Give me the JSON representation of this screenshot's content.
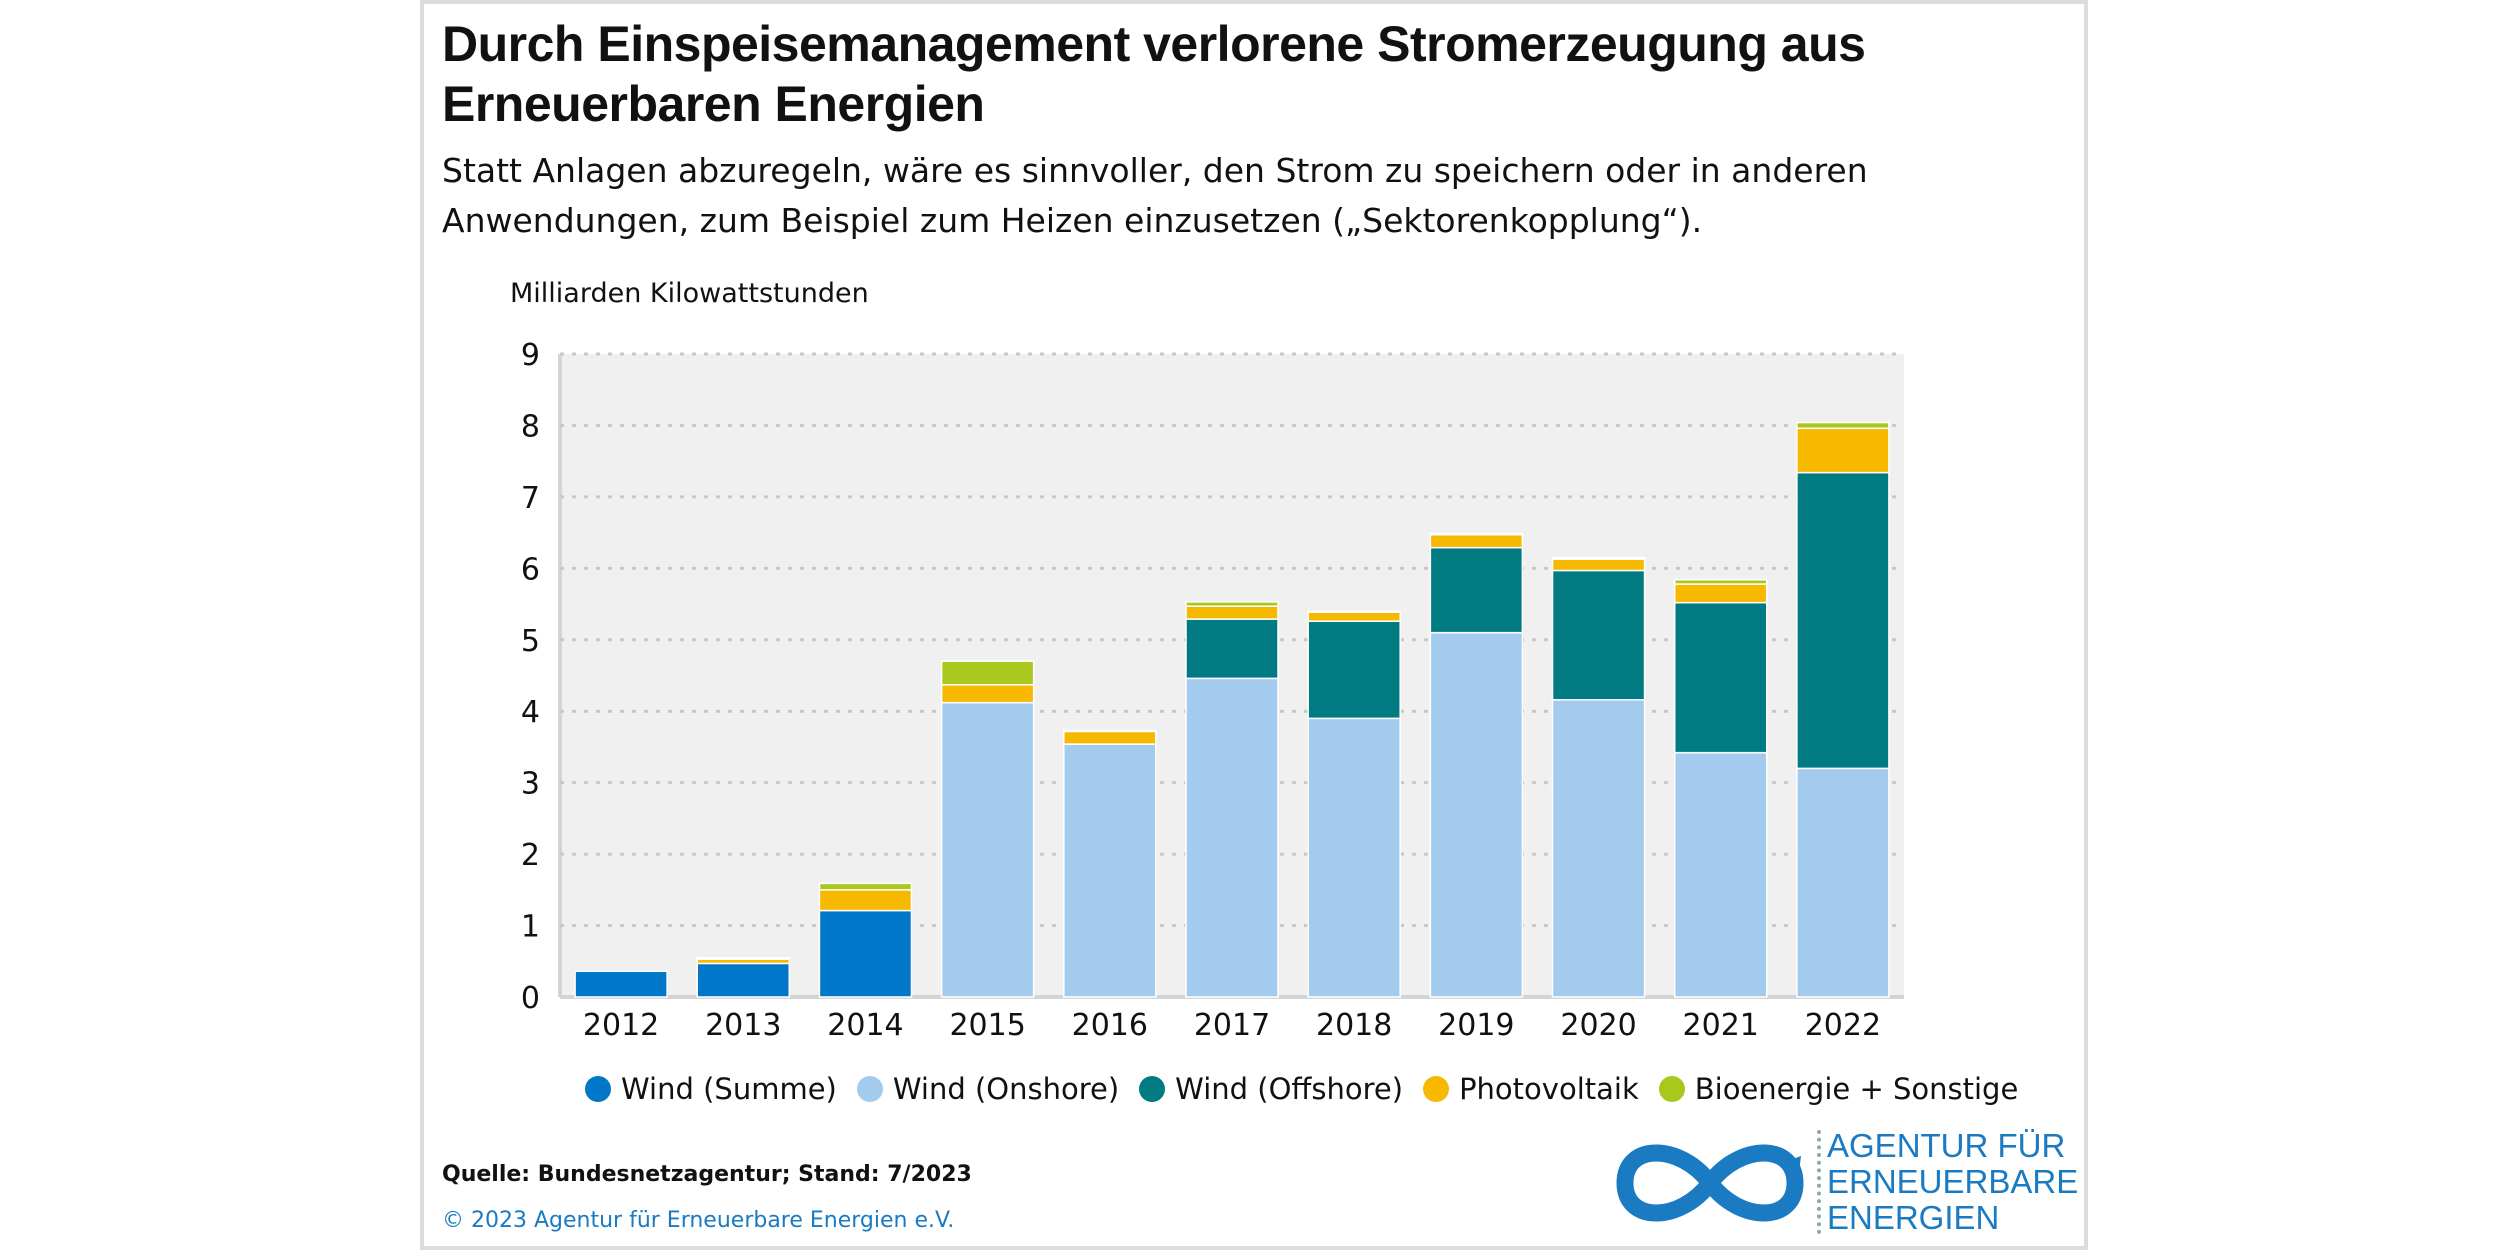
{
  "title": "Durch Einspeisemanagement verlorene Stromerzeugung aus Erneuerbaren Energien",
  "subtitle": "Statt Anlagen abzuregeln, wäre es sinnvoller, den Strom zu speichern oder in anderen Anwendungen, zum Beispiel zum Heizen einzusetzen („Sektorenkopplung“).",
  "source": "Quelle: Bundesnetzagentur; Stand: 7/2023",
  "copyright": "© 2023 Agentur für Erneuerbare Energien e.V.",
  "logo": {
    "lines": [
      "AGENTUR FÜR",
      "ERNEUERBARE",
      "ENERGIEN"
    ],
    "color": "#1a7ac2"
  },
  "chart_data": {
    "type": "bar",
    "stacked": true,
    "title": "Durch Einspeisemanagement verlorene Stromerzeugung aus Erneuerbaren Energien",
    "xlabel": "",
    "ylabel": "Milliarden Kilowattstunden",
    "ylim": [
      0,
      9
    ],
    "yticks": [
      "0",
      "1",
      "2",
      "3",
      "4",
      "5",
      "6",
      "7",
      "8",
      "9"
    ],
    "grid": true,
    "legend_position": "bottom",
    "categories": [
      "2012",
      "2013",
      "2014",
      "2015",
      "2016",
      "2017",
      "2018",
      "2019",
      "2020",
      "2021",
      "2022"
    ],
    "series": [
      {
        "name": "Wind (Summe)",
        "color": "#0077c8",
        "values": [
          0.36,
          0.47,
          1.21,
          0,
          0,
          0,
          0,
          0,
          0,
          0,
          0
        ]
      },
      {
        "name": "Wind (Onshore)",
        "color": "#a2cbed",
        "values": [
          0,
          0,
          0,
          4.12,
          3.54,
          4.46,
          3.9,
          5.1,
          4.16,
          3.42,
          3.2
        ]
      },
      {
        "name": "Wind (Offshore)",
        "color": "#007b82",
        "values": [
          0,
          0,
          0,
          0,
          0,
          0.83,
          1.36,
          1.19,
          1.81,
          2.1,
          4.14
        ]
      },
      {
        "name": "Photovoltaik",
        "color": "#f7b800",
        "values": [
          0,
          0.06,
          0.29,
          0.25,
          0.18,
          0.18,
          0.13,
          0.18,
          0.16,
          0.26,
          0.62
        ]
      },
      {
        "name": "Bioenergie + Sonstige",
        "color": "#a8c81e",
        "values": [
          0,
          0.02,
          0.09,
          0.33,
          0.01,
          0.06,
          0.01,
          0.02,
          0.02,
          0.06,
          0.08
        ]
      }
    ]
  }
}
